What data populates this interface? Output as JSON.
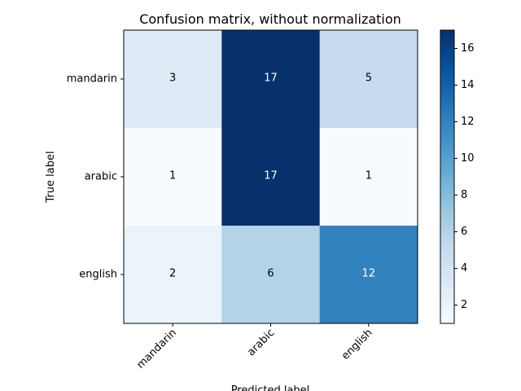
{
  "chart_data": {
    "type": "heatmap",
    "title": "Confusion matrix, without normalization",
    "xlabel": "Predicted label",
    "ylabel": "True label",
    "x_categories": [
      "mandarin",
      "arabic",
      "english"
    ],
    "y_categories": [
      "mandarin",
      "arabic",
      "english"
    ],
    "values": [
      [
        3,
        17,
        5
      ],
      [
        1,
        17,
        1
      ],
      [
        2,
        6,
        12
      ]
    ],
    "colormap": "Blues",
    "color_range": [
      1,
      17
    ],
    "colorbar": {
      "ticks": [
        2,
        4,
        6,
        8,
        10,
        12,
        14,
        16
      ],
      "labels": [
        "2",
        "4",
        "6",
        "8",
        "10",
        "12",
        "14",
        "16"
      ]
    },
    "text_colors": {
      "dark_background": "#ffffff",
      "light_background": "#000000"
    },
    "grid": false
  }
}
